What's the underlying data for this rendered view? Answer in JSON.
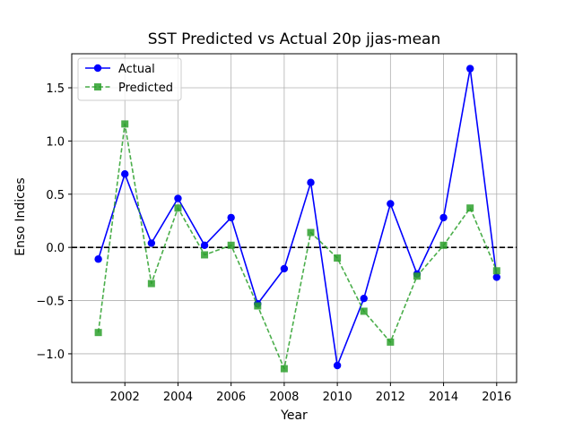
{
  "chart_data": {
    "type": "line",
    "title": "SST Predicted vs Actual 20p jjas-mean",
    "xlabel": "Year",
    "ylabel": "Enso Indices",
    "x": [
      2001,
      2002,
      2003,
      2004,
      2005,
      2006,
      2007,
      2008,
      2009,
      2010,
      2011,
      2012,
      2013,
      2014,
      2015,
      2016
    ],
    "xlim": [
      2000,
      2016.75
    ],
    "ylim": [
      -1.27,
      1.82
    ],
    "xticks": [
      2002,
      2004,
      2006,
      2008,
      2010,
      2012,
      2014,
      2016
    ],
    "yticks": [
      -1.0,
      -0.5,
      0.0,
      0.5,
      1.0,
      1.5
    ],
    "ytick_labels": [
      "−1.0",
      "−0.5",
      "0.0",
      "0.5",
      "1.0",
      "1.5"
    ],
    "grid": true,
    "reference_line": {
      "y": 0.0,
      "color": "#000000",
      "style": "dashed"
    },
    "legend_position": "top-left",
    "series": [
      {
        "name": "Actual",
        "color": "#0000ff",
        "marker": "circle",
        "linestyle": "solid",
        "values": [
          -0.11,
          0.69,
          0.04,
          0.46,
          0.02,
          0.28,
          -0.53,
          -0.2,
          0.61,
          -1.11,
          -0.48,
          0.41,
          -0.25,
          0.28,
          1.68,
          -0.28
        ]
      },
      {
        "name": "Predicted",
        "color": "#2ca02c",
        "marker": "square",
        "linestyle": "dashed",
        "values": [
          -0.8,
          1.16,
          -0.34,
          0.37,
          -0.07,
          0.02,
          -0.55,
          -1.14,
          0.14,
          -0.1,
          -0.6,
          -0.89,
          -0.27,
          0.02,
          0.37,
          -0.22
        ]
      }
    ]
  }
}
